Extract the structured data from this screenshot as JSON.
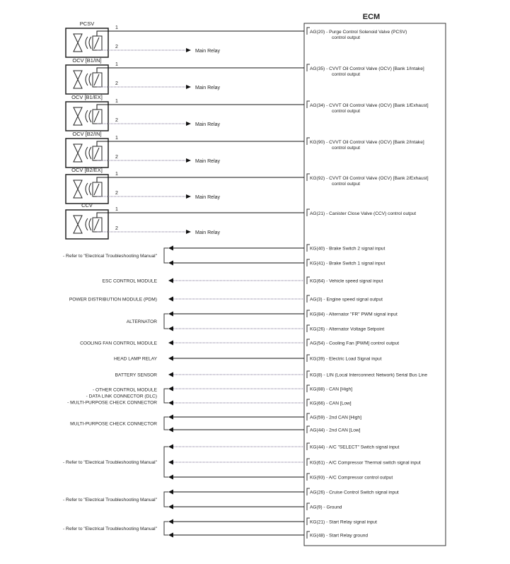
{
  "ecm": {
    "title": "ECM"
  },
  "valves": [
    {
      "name": "PCSV",
      "pin1": "1",
      "pin2": "2",
      "relay": "Main Relay",
      "terminal": "AG(20) - Purge Control Solenoid Valve (PCSV)",
      "terminal2": "control output"
    },
    {
      "name": "OCV  [B1/IN]",
      "pin1": "1",
      "pin2": "2",
      "relay": "Main Relay",
      "terminal": "AG(35) - CVVT Oil Control Valve (OCV) [Bank 1/Intake]",
      "terminal2": "control output"
    },
    {
      "name": "OCV  [B1/EX]",
      "pin1": "1",
      "pin2": "2",
      "relay": "Main Relay",
      "terminal": "AG(34) - CVVT Oil Control Valve (OCV) [Bank 1/Exhaust]",
      "terminal2": "control output"
    },
    {
      "name": "OCV  [B2/IN]",
      "pin1": "1",
      "pin2": "2",
      "relay": "Main Relay",
      "terminal": "KG(90) - CVVT Oil Control Valve (OCV) [Bank 2/Intake]",
      "terminal2": "control output"
    },
    {
      "name": "OCV  [B2/EX]",
      "pin1": "1",
      "pin2": "2",
      "relay": "Main Relay",
      "terminal": "KG(92) - CVVT Oil Control Valve (OCV) [Bank 2/Exhaust]",
      "terminal2": "control output"
    },
    {
      "name": "CCV",
      "pin1": "1",
      "pin2": "2",
      "relay": "Main Relay",
      "terminal": "AG(21) - Canister Close Valve (CCV) control output",
      "terminal2": ""
    }
  ],
  "groups": [
    {
      "labels": [
        "- Refer to \"Electrical Troubleshooting Manual\""
      ],
      "signals": [
        "KG(40) - Brake Switch 2 signal input",
        "KG(41) - Brake Switch 1 signal input"
      ]
    },
    {
      "labels": [
        "ESC CONTROL MODULE"
      ],
      "signals": [
        "KG(64) - Vehicle speed signal input"
      ]
    },
    {
      "labels": [
        "POWER DISTRIBUTION MODULE (PDM)"
      ],
      "signals": [
        "AG(3) - Engine speed signal output"
      ]
    },
    {
      "labels": [
        "ALTERNATOR"
      ],
      "signals": [
        "KG(84) - Alternator \"FR\" PWM signal input",
        "KG(26) - Alternator Voltage Setpoint"
      ]
    },
    {
      "labels": [
        "COOLING FAN CONTROL MODULE"
      ],
      "signals": [
        "AG(54) - Cooling Fan [PWM] control output"
      ]
    },
    {
      "labels": [
        "HEAD LAMP RELAY"
      ],
      "signals": [
        "KG(39) - Electric Load Signal input"
      ]
    },
    {
      "labels": [
        "BATTERY SENSOR"
      ],
      "signals": [
        "KG(8) - LIN (Local Interconnect Network) Serial Bus Line"
      ]
    },
    {
      "labels": [
        "- OTHER CONTROL MODULE",
        "- DATA LINK CONNECTOR (DLC)",
        "- MULTI-PURPOSE CHECK CONNECTOR"
      ],
      "signals": [
        "KG(88) - CAN [High]",
        "KG(66) - CAN [Low]"
      ]
    },
    {
      "labels": [
        "MULTI-PURPOSE CHECK CONNECTOR"
      ],
      "signals": [
        "AG(59) - 2nd CAN [High]",
        "AG(44) - 2nd CAN [Low]"
      ]
    },
    {
      "labels": [
        "- Refer to \"Electrical Troubleshooting Manual\""
      ],
      "signals": [
        "KG(44) - A/C \"SELECT\" Switch signal input",
        "KG(61) - A/C Compressor Thermal switch signal input",
        "KG(93) - A/C Compressor control output"
      ]
    },
    {
      "labels": [
        "- Refer to \"Electrical Troubleshooting Manual\""
      ],
      "signals": [
        "AG(26) - Cruise Control Switch signal input",
        "AG(9) - Ground"
      ]
    },
    {
      "labels": [
        "- Refer to \"Electrical Troubleshooting Manual\""
      ],
      "signals": [
        "KG(21) - Start Relay signal input",
        "KG(48) - Start Relay ground"
      ]
    }
  ],
  "colors": {
    "line": "#111111",
    "dotted_wire": "#7a6f90"
  }
}
